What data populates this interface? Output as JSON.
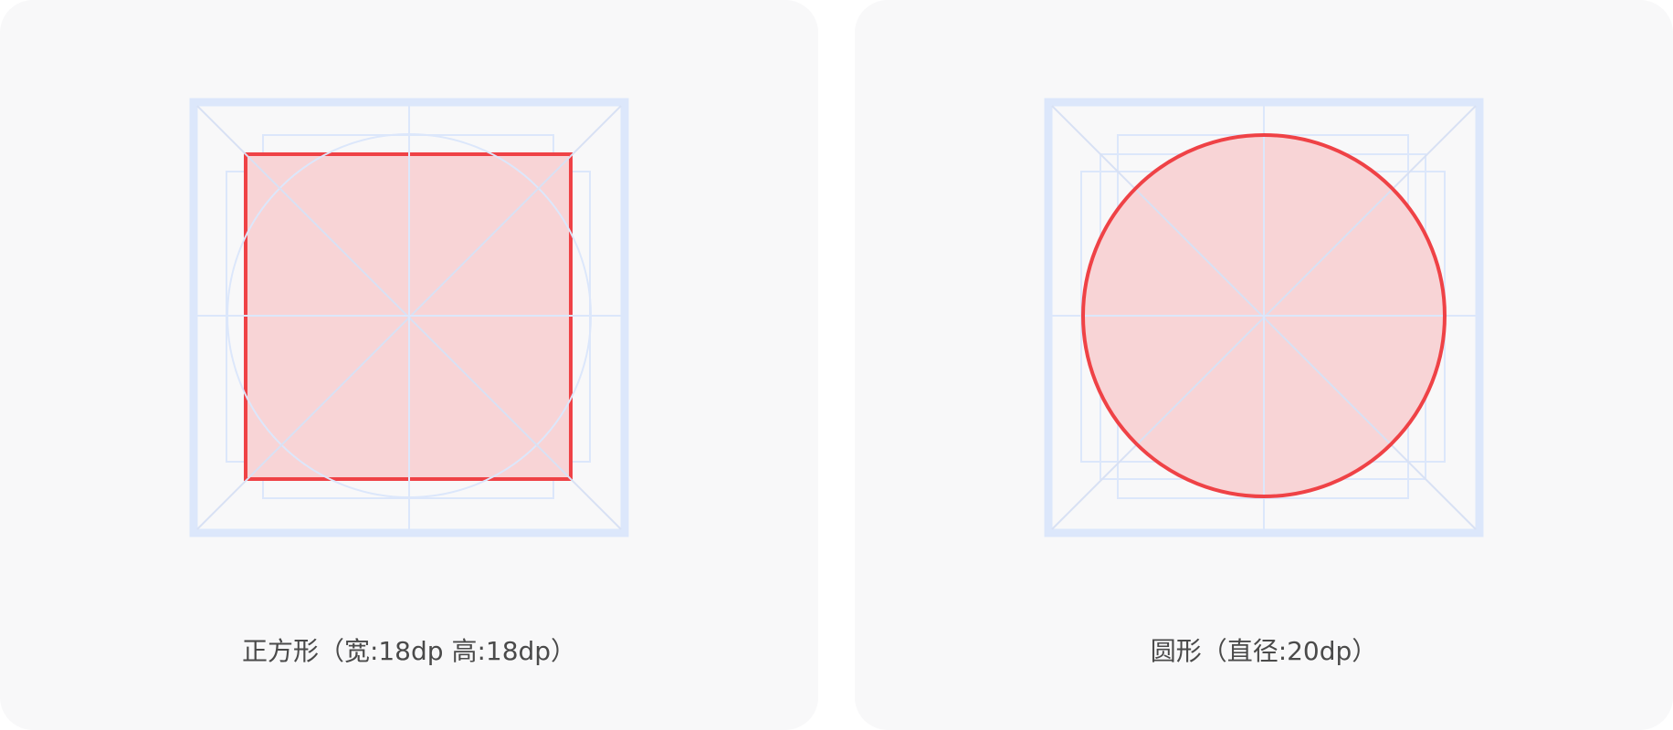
{
  "panels": [
    {
      "id": "square",
      "caption": "正方形（宽:18dp 高:18dp）",
      "shape": "square",
      "width_dp": 18,
      "height_dp": 18
    },
    {
      "id": "circle",
      "caption": "圆形（直径:20dp）",
      "shape": "circle",
      "diameter_dp": 20
    }
  ],
  "colors": {
    "card_background": "#f8f8f9",
    "grid_line": "#dce7fb",
    "frame": "#dce7fb",
    "shape_stroke": "#ef4246",
    "shape_fill": "#f8d4d6",
    "caption_text": "#4a4a4a"
  }
}
